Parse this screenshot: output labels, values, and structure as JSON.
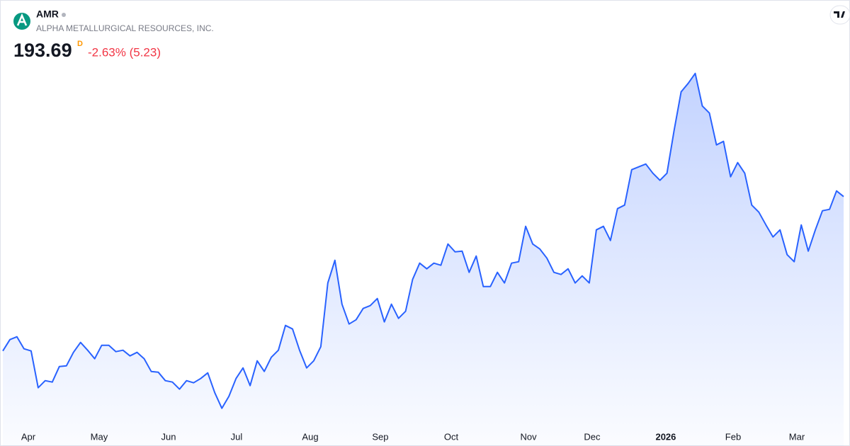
{
  "header": {
    "ticker": "AMR",
    "company": "ALPHA METALLURGICAL RESOURCES, INC.",
    "price": "193.69",
    "price_flag": "D",
    "change": "-2.63% (5.23)"
  },
  "chart_data": {
    "type": "area",
    "color": "#2962ff",
    "values": [
      128.29,
      133.09,
      134.29,
      129.19,
      128.29,
      112.69,
      115.69,
      115.09,
      121.69,
      121.99,
      127.69,
      131.89,
      128.59,
      124.99,
      130.69,
      130.69,
      127.99,
      128.59,
      126.19,
      127.69,
      124.99,
      119.59,
      119.29,
      115.69,
      115.09,
      112.09,
      115.69,
      114.79,
      116.59,
      118.99,
      110.59,
      103.99,
      109.09,
      116.59,
      121.09,
      113.59,
      124.09,
      119.59,
      125.59,
      128.59,
      139.09,
      137.59,
      128.59,
      121.09,
      124.09,
      130.09,
      157.09,
      166.69,
      148.09,
      139.69,
      141.49,
      146.29,
      147.49,
      150.49,
      140.59,
      148.09,
      142.09,
      145.09,
      158.59,
      165.49,
      163.09,
      165.49,
      164.59,
      173.59,
      170.29,
      170.59,
      161.59,
      168.49,
      155.59,
      155.59,
      161.59,
      157.09,
      165.49,
      166.09,
      181.09,
      173.59,
      171.49,
      167.59,
      161.59,
      160.69,
      163.09,
      157.09,
      160.09,
      157.09,
      179.59,
      181.09,
      175.09,
      188.59,
      190.09,
      205.09,
      206.29,
      207.49,
      203.59,
      200.59,
      203.59,
      221.59,
      238.09,
      241.69,
      245.89,
      232.09,
      229.09,
      215.59,
      217.09,
      202.09,
      208.09,
      203.59,
      190.09,
      187.09,
      181.69,
      176.59,
      179.59,
      169.09,
      166.09,
      181.69,
      170.59,
      179.59,
      187.69,
      188.29,
      196.09,
      193.69
    ],
    "xlim": [
      0,
      119
    ],
    "ylim": [
      97,
      250
    ],
    "xticks": [
      {
        "value": 3.61,
        "label": "Apr"
      },
      {
        "value": 13.63,
        "label": "May"
      },
      {
        "value": 23.46,
        "label": "Jun"
      },
      {
        "value": 33.08,
        "label": "Jul"
      },
      {
        "value": 43.51,
        "label": "Aug"
      },
      {
        "value": 53.43,
        "label": "Sep"
      },
      {
        "value": 63.46,
        "label": "Oct"
      },
      {
        "value": 74.39,
        "label": "Nov"
      },
      {
        "value": 83.41,
        "label": "Dec"
      },
      {
        "value": 93.83,
        "label": "2026"
      },
      {
        "value": 103.36,
        "label": "Feb"
      },
      {
        "value": 112.38,
        "label": "Mar"
      }
    ]
  }
}
